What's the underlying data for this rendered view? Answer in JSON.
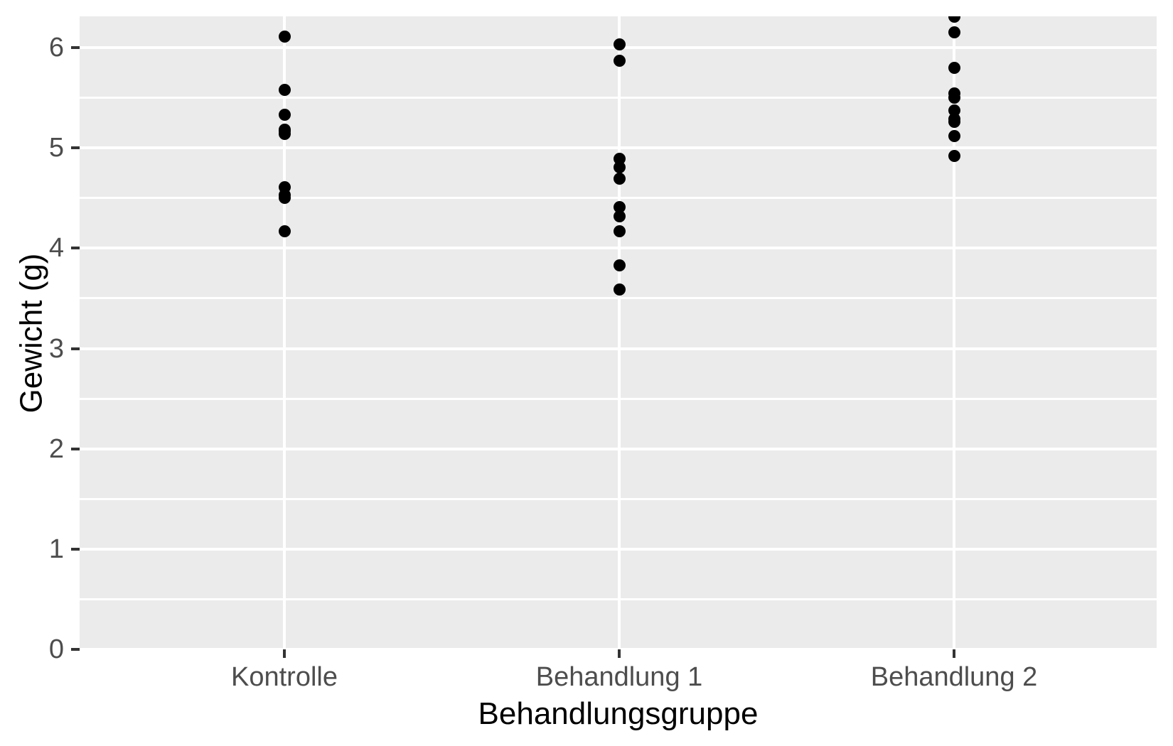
{
  "chart_data": {
    "type": "scatter",
    "subtype": "strip-plot",
    "title": "",
    "xlabel": "Behandlungsgruppe",
    "ylabel": "Gewicht (g)",
    "categories": [
      "Kontrolle",
      "Behandlung 1",
      "Behandlung 2"
    ],
    "series": [
      {
        "name": "Kontrolle",
        "values": [
          4.17,
          5.58,
          5.18,
          6.11,
          4.5,
          4.61,
          5.17,
          4.53,
          5.33,
          5.14
        ]
      },
      {
        "name": "Behandlung 1",
        "values": [
          4.81,
          4.17,
          4.41,
          3.59,
          5.87,
          3.83,
          6.03,
          4.89,
          4.32,
          4.69
        ]
      },
      {
        "name": "Behandlung 2",
        "values": [
          6.31,
          5.12,
          5.54,
          5.5,
          5.37,
          5.29,
          4.92,
          6.15,
          5.8,
          5.26
        ]
      }
    ],
    "ylim": [
      0,
      6.312
    ],
    "yticks": [
      0,
      1,
      2,
      3,
      4,
      5,
      6
    ],
    "minor_gridline_step": 0.5,
    "grid": "major and minor horizontal white gridlines, vertical white gridline per category",
    "legend": "none",
    "colors": {
      "panel_background": "#EBEBEB",
      "gridline": "#FFFFFF",
      "point": "#000000",
      "tick_mark": "#333333",
      "tick_label": "#4D4D4D",
      "axis_title": "#000000"
    }
  }
}
